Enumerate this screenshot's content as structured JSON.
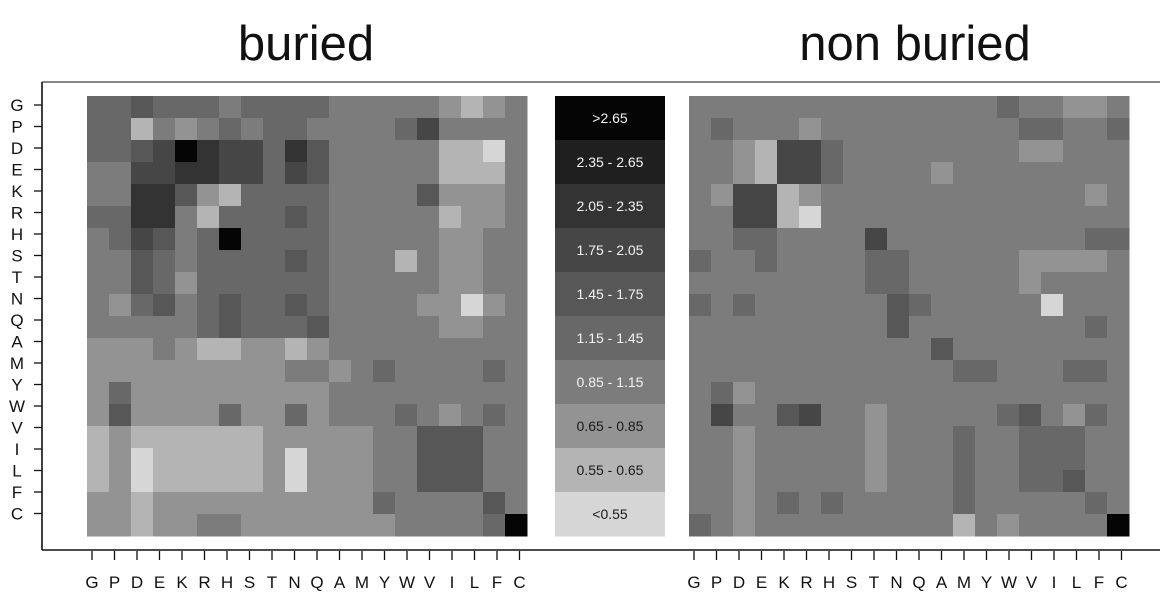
{
  "chart_data": {
    "type": "heatmap",
    "amino_acids": [
      "G",
      "P",
      "D",
      "E",
      "K",
      "R",
      "H",
      "S",
      "T",
      "N",
      "Q",
      "A",
      "M",
      "Y",
      "W",
      "V",
      "I",
      "L",
      "F",
      "C"
    ],
    "legend": {
      "labels": [
        ">2.65",
        "2.35 - 2.65",
        "2.05 - 2.35",
        "1.75 - 2.05",
        "1.45 - 1.75",
        "1.15 - 1.45",
        "0.85 - 1.15",
        "0.65 - 0.85",
        "0.55 - 0.65",
        "<0.55"
      ],
      "colors": [
        "#050505",
        "#1f1f1f",
        "#333333",
        "#464646",
        "#575757",
        "#686868",
        "#7c7c7c",
        "#939393",
        "#b4b4b4",
        "#d6d6d6"
      ]
    },
    "panels": [
      {
        "title": "buried",
        "bins": [
          [
            5,
            5,
            4,
            5,
            5,
            5,
            6,
            5,
            5,
            5,
            5,
            6,
            6,
            6,
            6,
            6,
            7,
            8,
            7,
            6
          ],
          [
            5,
            5,
            8,
            6,
            7,
            6,
            5,
            6,
            5,
            5,
            6,
            6,
            6,
            6,
            5,
            3,
            6,
            6,
            6,
            6
          ],
          [
            5,
            5,
            4,
            3,
            0,
            2,
            3,
            3,
            5,
            2,
            4,
            6,
            6,
            6,
            6,
            6,
            8,
            8,
            9,
            6
          ],
          [
            6,
            6,
            3,
            3,
            2,
            2,
            3,
            3,
            5,
            3,
            4,
            6,
            6,
            6,
            6,
            6,
            8,
            8,
            8,
            6
          ],
          [
            6,
            6,
            2,
            2,
            4,
            7,
            8,
            5,
            5,
            5,
            5,
            6,
            6,
            6,
            6,
            4,
            7,
            7,
            7,
            6
          ],
          [
            5,
            5,
            2,
            2,
            6,
            8,
            5,
            5,
            5,
            4,
            5,
            6,
            6,
            6,
            6,
            6,
            8,
            7,
            7,
            6
          ],
          [
            6,
            5,
            3,
            4,
            6,
            5,
            0,
            5,
            5,
            5,
            5,
            6,
            6,
            6,
            6,
            6,
            7,
            7,
            6,
            6
          ],
          [
            6,
            6,
            4,
            5,
            6,
            5,
            5,
            5,
            5,
            4,
            5,
            6,
            6,
            6,
            8,
            6,
            7,
            7,
            6,
            6
          ],
          [
            6,
            6,
            4,
            5,
            7,
            5,
            5,
            5,
            5,
            5,
            5,
            6,
            6,
            6,
            6,
            6,
            7,
            7,
            6,
            6
          ],
          [
            6,
            7,
            5,
            4,
            6,
            5,
            4,
            5,
            5,
            4,
            5,
            6,
            6,
            6,
            6,
            7,
            7,
            9,
            7,
            6
          ],
          [
            6,
            6,
            6,
            6,
            6,
            5,
            4,
            5,
            5,
            5,
            4,
            6,
            6,
            6,
            6,
            6,
            7,
            7,
            6,
            6
          ],
          [
            7,
            7,
            7,
            6,
            7,
            8,
            8,
            7,
            7,
            8,
            7,
            6,
            6,
            6,
            6,
            6,
            6,
            6,
            6,
            6
          ],
          [
            7,
            7,
            7,
            7,
            7,
            7,
            7,
            7,
            7,
            6,
            6,
            7,
            6,
            5,
            6,
            6,
            6,
            6,
            5,
            6
          ],
          [
            7,
            5,
            7,
            7,
            7,
            7,
            7,
            7,
            7,
            7,
            7,
            6,
            6,
            6,
            6,
            6,
            6,
            6,
            6,
            6
          ],
          [
            7,
            4,
            7,
            7,
            7,
            7,
            5,
            7,
            7,
            5,
            7,
            6,
            6,
            6,
            5,
            6,
            7,
            6,
            5,
            6
          ],
          [
            8,
            7,
            8,
            8,
            8,
            8,
            8,
            8,
            7,
            7,
            7,
            7,
            7,
            6,
            6,
            4,
            4,
            4,
            6,
            6
          ],
          [
            8,
            7,
            9,
            8,
            8,
            8,
            8,
            8,
            7,
            9,
            7,
            7,
            7,
            6,
            6,
            4,
            4,
            4,
            6,
            6
          ],
          [
            8,
            7,
            9,
            8,
            8,
            8,
            8,
            8,
            7,
            9,
            7,
            7,
            7,
            6,
            6,
            4,
            4,
            4,
            6,
            6
          ],
          [
            7,
            7,
            8,
            7,
            7,
            7,
            7,
            7,
            7,
            7,
            7,
            7,
            7,
            5,
            6,
            6,
            6,
            6,
            4,
            6
          ],
          [
            7,
            7,
            8,
            7,
            7,
            6,
            6,
            7,
            7,
            7,
            7,
            7,
            7,
            7,
            6,
            6,
            6,
            6,
            5,
            0
          ]
        ]
      },
      {
        "title": "non buried",
        "bins": [
          [
            6,
            6,
            6,
            6,
            6,
            6,
            6,
            6,
            6,
            6,
            6,
            6,
            6,
            6,
            5,
            6,
            6,
            7,
            7,
            6
          ],
          [
            6,
            5,
            6,
            6,
            6,
            7,
            6,
            6,
            6,
            6,
            6,
            6,
            6,
            6,
            6,
            5,
            5,
            6,
            6,
            5
          ],
          [
            6,
            6,
            7,
            8,
            3,
            3,
            5,
            6,
            6,
            6,
            6,
            6,
            6,
            6,
            6,
            7,
            7,
            6,
            6,
            6
          ],
          [
            6,
            6,
            7,
            8,
            3,
            3,
            5,
            6,
            6,
            6,
            6,
            7,
            6,
            6,
            6,
            6,
            6,
            6,
            6,
            6
          ],
          [
            6,
            7,
            3,
            3,
            8,
            7,
            6,
            6,
            6,
            6,
            6,
            6,
            6,
            6,
            6,
            6,
            6,
            6,
            7,
            6
          ],
          [
            6,
            6,
            3,
            3,
            8,
            9,
            6,
            6,
            6,
            6,
            6,
            6,
            6,
            6,
            6,
            6,
            6,
            6,
            6,
            6
          ],
          [
            6,
            6,
            5,
            5,
            6,
            6,
            6,
            6,
            3,
            6,
            6,
            6,
            6,
            6,
            6,
            6,
            6,
            6,
            5,
            5
          ],
          [
            5,
            6,
            6,
            5,
            6,
            6,
            6,
            6,
            5,
            5,
            6,
            6,
            6,
            6,
            6,
            7,
            7,
            7,
            7,
            6
          ],
          [
            6,
            6,
            6,
            6,
            6,
            6,
            6,
            6,
            5,
            5,
            6,
            6,
            6,
            6,
            6,
            7,
            6,
            6,
            6,
            6
          ],
          [
            5,
            6,
            5,
            6,
            6,
            6,
            6,
            6,
            6,
            4,
            5,
            6,
            6,
            6,
            6,
            6,
            9,
            6,
            6,
            6
          ],
          [
            6,
            6,
            6,
            6,
            6,
            6,
            6,
            6,
            6,
            4,
            6,
            6,
            6,
            6,
            6,
            6,
            6,
            6,
            5,
            6
          ],
          [
            6,
            6,
            6,
            6,
            6,
            6,
            6,
            6,
            6,
            6,
            6,
            4,
            6,
            6,
            6,
            6,
            6,
            6,
            6,
            6
          ],
          [
            6,
            6,
            6,
            6,
            6,
            6,
            6,
            6,
            6,
            6,
            6,
            6,
            5,
            5,
            6,
            6,
            6,
            5,
            5,
            6
          ],
          [
            6,
            5,
            7,
            6,
            6,
            6,
            6,
            6,
            6,
            6,
            6,
            6,
            6,
            6,
            6,
            6,
            6,
            6,
            6,
            6
          ],
          [
            6,
            3,
            6,
            6,
            4,
            3,
            6,
            6,
            7,
            6,
            6,
            6,
            6,
            6,
            5,
            4,
            6,
            7,
            5,
            6
          ],
          [
            6,
            6,
            7,
            6,
            6,
            6,
            6,
            6,
            7,
            6,
            6,
            6,
            5,
            6,
            6,
            5,
            5,
            5,
            6,
            6
          ],
          [
            6,
            6,
            7,
            6,
            6,
            6,
            6,
            6,
            7,
            6,
            6,
            6,
            5,
            6,
            6,
            5,
            5,
            5,
            6,
            6
          ],
          [
            6,
            6,
            7,
            6,
            6,
            6,
            6,
            6,
            7,
            6,
            6,
            6,
            5,
            6,
            6,
            5,
            5,
            4,
            6,
            6
          ],
          [
            6,
            6,
            7,
            6,
            5,
            6,
            5,
            6,
            6,
            6,
            6,
            6,
            5,
            6,
            6,
            6,
            6,
            6,
            5,
            6
          ],
          [
            5,
            6,
            7,
            6,
            6,
            6,
            6,
            6,
            6,
            6,
            6,
            6,
            8,
            6,
            7,
            6,
            6,
            6,
            6,
            0
          ]
        ]
      }
    ]
  }
}
